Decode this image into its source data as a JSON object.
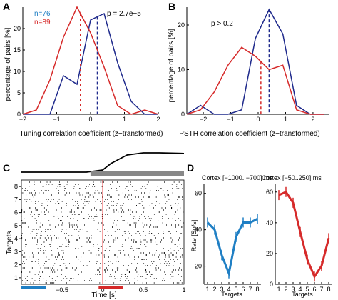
{
  "panels": {
    "A": {
      "label": "A",
      "n_blue": "n=76",
      "n_red": "n=89",
      "pval": "p = 2.7e−5",
      "ylabel": "percentage of pairs [%]",
      "xlabel": "Tuning correlation coefficient (z−transformed)"
    },
    "B": {
      "label": "B",
      "pval": "p > 0.2",
      "ylabel": "percentage of pairs [%]",
      "xlabel": "PSTH correlation coefficient (z−transformed)"
    },
    "C": {
      "label": "C",
      "ylabel": "Targets",
      "xlabel": "Time [s]"
    },
    "D": {
      "label": "D",
      "left_title": "Cortex [−1000..−700] ms",
      "right_title": "Cortex [−50..250] ms",
      "ylabel": "Rate [Sp/s]",
      "left_xlabel": "Targets",
      "right_xlabel": "Targets"
    }
  },
  "colors": {
    "blue": "#1f2a8c",
    "red": "#d62a2a",
    "blue_light": "#1f7fc4",
    "gray": "#888888"
  },
  "chart_data": [
    {
      "id": "A",
      "type": "line",
      "xlim": [
        -2,
        2
      ],
      "ylim": [
        0,
        25
      ],
      "xticks": [
        -2,
        -1,
        0,
        1,
        2
      ],
      "yticks": [
        0,
        5,
        10,
        15,
        20
      ],
      "series": [
        {
          "name": "n=76",
          "color": "#1f2a8c",
          "x": [
            -2,
            -1.6,
            -1.2,
            -0.8,
            -0.4,
            0.0,
            0.4,
            0.8,
            1.2,
            1.6,
            2.0
          ],
          "y": [
            0,
            0,
            0,
            9,
            7,
            22,
            23.5,
            12,
            3,
            0,
            0
          ],
          "dashed_mean": 0.2
        },
        {
          "name": "n=89",
          "color": "#d62a2a",
          "x": [
            -2,
            -1.6,
            -1.2,
            -0.8,
            -0.4,
            0.0,
            0.4,
            0.8,
            1.2,
            1.6,
            2.0
          ],
          "y": [
            0,
            1,
            8,
            18,
            25,
            19,
            11,
            2,
            0,
            1,
            0
          ],
          "dashed_mean": -0.3
        }
      ]
    },
    {
      "id": "B",
      "type": "line",
      "xlim": [
        -2.6,
        2.6
      ],
      "ylim": [
        0,
        24
      ],
      "xticks": [
        -2,
        -1,
        0,
        1,
        2
      ],
      "yticks": [
        0,
        10,
        20
      ],
      "series": [
        {
          "color": "#1f2a8c",
          "x": [
            -2.6,
            -2.1,
            -1.6,
            -1.1,
            -0.6,
            -0.1,
            0.4,
            0.9,
            1.4,
            1.9,
            2.4
          ],
          "y": [
            0,
            2,
            0,
            0,
            1,
            17,
            23.5,
            18,
            2,
            0,
            0
          ],
          "dashed_mean": 0.4
        },
        {
          "color": "#d62a2a",
          "x": [
            -2.6,
            -2.1,
            -1.6,
            -1.1,
            -0.6,
            -0.1,
            0.4,
            0.9,
            1.4,
            1.9,
            2.4
          ],
          "y": [
            0,
            1,
            5,
            11,
            15,
            13,
            10,
            11,
            1,
            0,
            0
          ],
          "dashed_mean": 0.1
        }
      ]
    },
    {
      "id": "D-left",
      "type": "line",
      "xlim": [
        0.5,
        8.5
      ],
      "ylim": [
        10,
        65
      ],
      "xticks": [
        1,
        2,
        3,
        4,
        5,
        6,
        7,
        8
      ],
      "yticks": [
        20,
        40,
        60
      ],
      "series": [
        {
          "color": "#1f7fc4",
          "x": [
            1,
            2,
            3,
            4,
            5,
            6,
            7,
            8
          ],
          "y": [
            44,
            40,
            26,
            16,
            36,
            44,
            44,
            46
          ]
        }
      ]
    },
    {
      "id": "D-right",
      "type": "line",
      "xlim": [
        0.5,
        8.5
      ],
      "ylim": [
        0,
        65
      ],
      "xticks": [
        1,
        2,
        3,
        4,
        5,
        6,
        7,
        8
      ],
      "yticks": [
        0,
        20,
        40,
        60
      ],
      "series": [
        {
          "color": "#d62a2a",
          "x": [
            1,
            2,
            3,
            4,
            5,
            6,
            7,
            8
          ],
          "y": [
            58,
            60,
            53,
            34,
            16,
            5,
            12,
            30
          ]
        }
      ]
    },
    {
      "id": "C-raster",
      "type": "scatter",
      "xlim": [
        -1,
        1
      ],
      "ylim": [
        0.5,
        8.5
      ],
      "xticks": [
        -0.5,
        0,
        0.5,
        1
      ],
      "yticks": [
        1,
        2,
        3,
        4,
        5,
        6,
        7,
        8
      ],
      "trace": {
        "x": [
          -1,
          -0.2,
          0,
          0.1,
          0.3,
          0.5,
          0.7,
          1.0
        ],
        "y": [
          0.1,
          0.1,
          0.2,
          0.5,
          0.9,
          1.0,
          1.0,
          0.97
        ]
      },
      "gray_bar": [
        -0.15,
        1.0
      ],
      "blue_bar": [
        -1.0,
        -0.7
      ],
      "red_bar": [
        -0.05,
        0.25
      ],
      "event_line": 0
    }
  ]
}
